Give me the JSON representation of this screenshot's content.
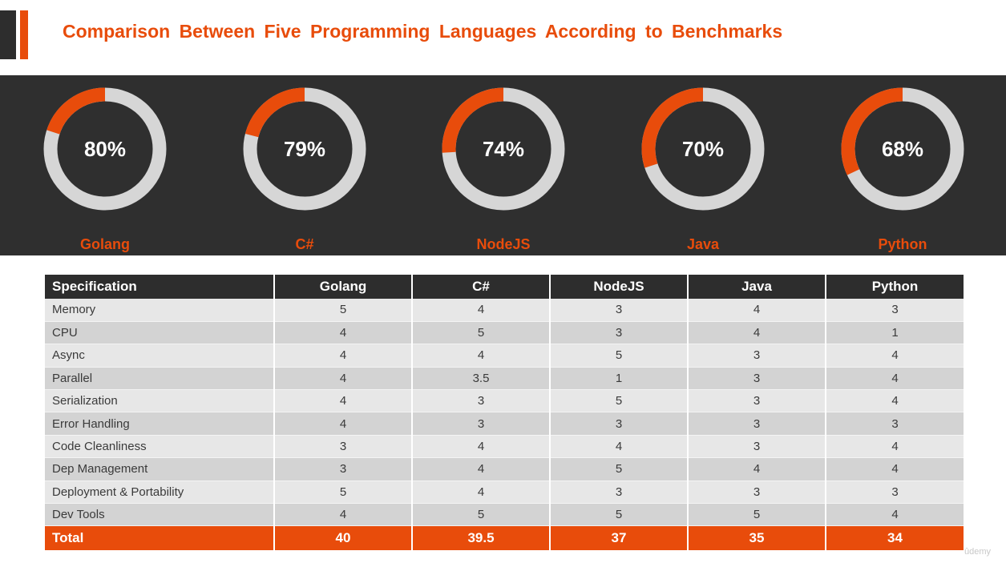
{
  "header": {
    "title": "Comparison Between Five Programming Languages According to Benchmarks"
  },
  "colors": {
    "accent": "#e84c0b",
    "dark": "#2f2f2f",
    "track": "#d6d6d6"
  },
  "chart_data": [
    {
      "type": "pie",
      "variant": "donut",
      "categories": [
        "Golang",
        "C#",
        "NodeJS",
        "Java",
        "Python"
      ],
      "values": [
        80,
        79,
        74,
        70,
        68
      ],
      "value_labels": [
        "80%",
        "79%",
        "74%",
        "70%",
        "68%"
      ]
    },
    {
      "type": "table",
      "columns": [
        "Specification",
        "Golang",
        "C#",
        "NodeJS",
        "Java",
        "Python"
      ],
      "rows": [
        [
          "Memory",
          "5",
          "4",
          "3",
          "4",
          "3"
        ],
        [
          "CPU",
          "4",
          "5",
          "3",
          "4",
          "1"
        ],
        [
          "Async",
          "4",
          "4",
          "5",
          "3",
          "4"
        ],
        [
          "Parallel",
          "4",
          "3.5",
          "1",
          "3",
          "4"
        ],
        [
          "Serialization",
          "4",
          "3",
          "5",
          "3",
          "4"
        ],
        [
          "Error Handling",
          "4",
          "3",
          "3",
          "3",
          "3"
        ],
        [
          "Code Cleanliness",
          "3",
          "4",
          "4",
          "3",
          "4"
        ],
        [
          "Dep Management",
          "3",
          "4",
          "5",
          "4",
          "4"
        ],
        [
          "Deployment & Portability",
          "5",
          "4",
          "3",
          "3",
          "3"
        ],
        [
          "Dev Tools",
          "4",
          "5",
          "5",
          "5",
          "4"
        ]
      ],
      "total": [
        "Total",
        "40",
        "39.5",
        "37",
        "35",
        "34"
      ]
    }
  ],
  "watermark": "ûdemy"
}
